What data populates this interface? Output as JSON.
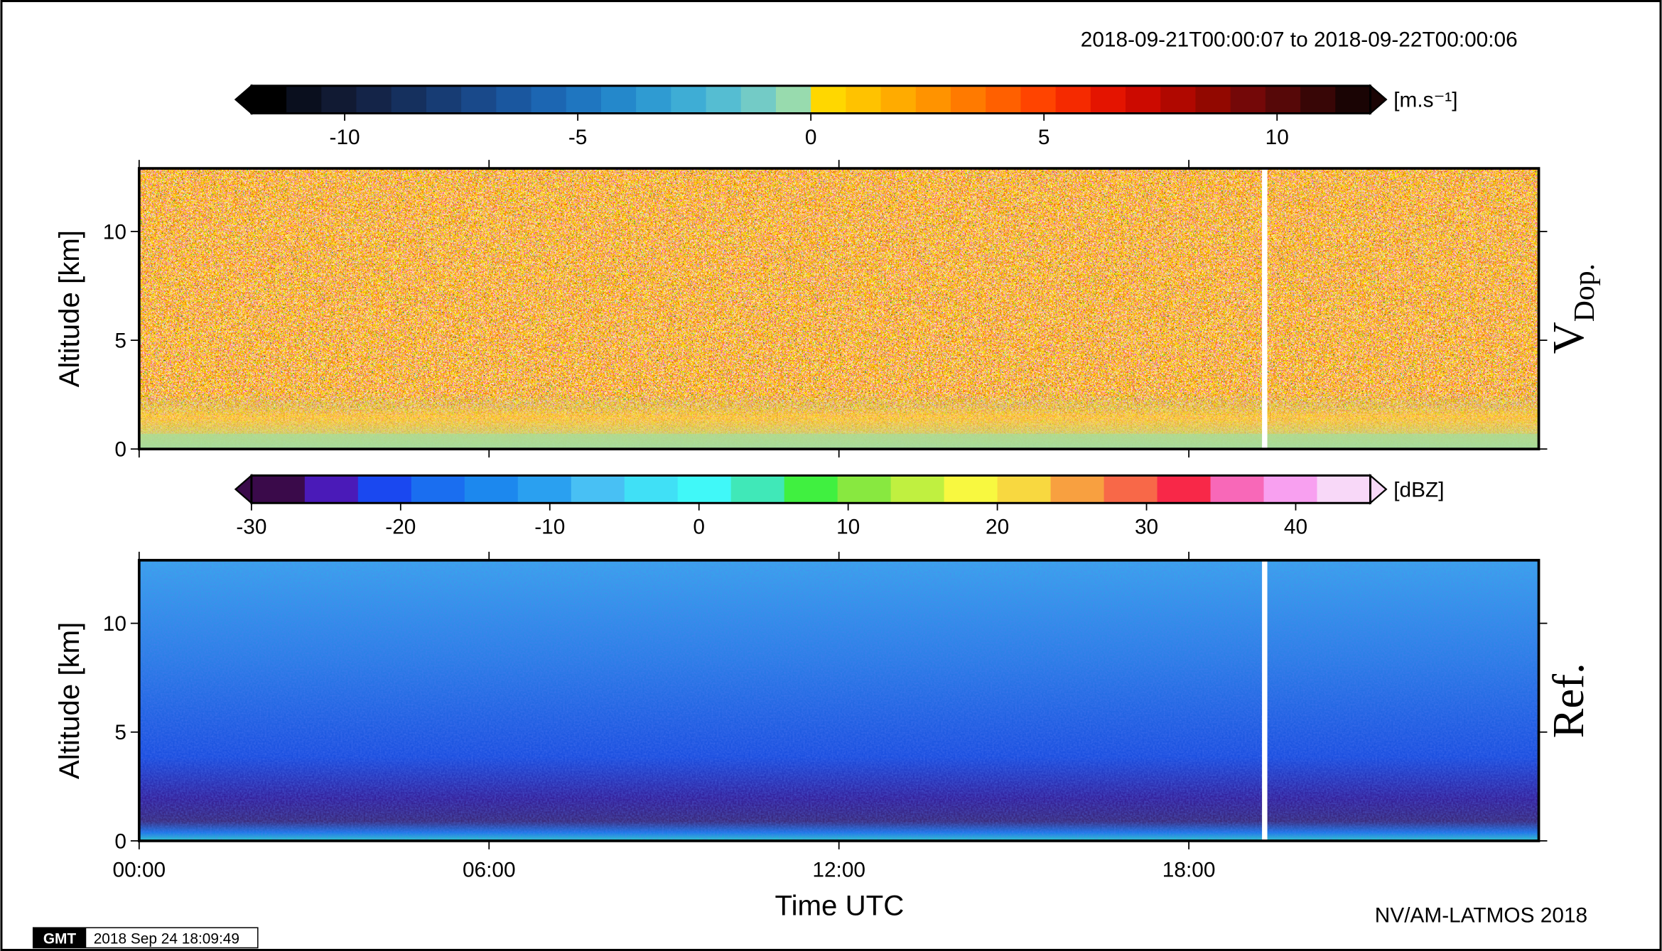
{
  "chart_data": {
    "type": "heatmap",
    "title": "2018-09-21T00:00:07 to 2018-09-22T00:00:06",
    "xlabel": "Time UTC",
    "xlim": [
      0,
      24
    ],
    "xticks": [
      {
        "value": 0,
        "label": "00:00"
      },
      {
        "value": 6,
        "label": "06:00"
      },
      {
        "value": 12,
        "label": "12:00"
      },
      {
        "value": 18,
        "label": "18:00"
      }
    ],
    "colorbars": [
      {
        "unit": "[m.s⁻¹]",
        "range": [
          -12,
          12
        ],
        "ticks": [
          -10,
          -5,
          0,
          5,
          10
        ],
        "colors": [
          "#000000",
          "#0a0f1e",
          "#111a33",
          "#142448",
          "#15305e",
          "#173c74",
          "#19498a",
          "#1a579f",
          "#1c66b2",
          "#1f76c0",
          "#2488cb",
          "#2f9bd2",
          "#3eadd5",
          "#55bdd2",
          "#73cbc6",
          "#98dbae",
          "#ffd700",
          "#ffc200",
          "#ffab00",
          "#ff9300",
          "#ff7a00",
          "#ff6000",
          "#ff4400",
          "#f52a00",
          "#e41400",
          "#cc0a00",
          "#b00800",
          "#920800",
          "#740808",
          "#560808",
          "#380606",
          "#1a0404"
        ]
      },
      {
        "unit": "[dBZ]",
        "range": [
          -30,
          45
        ],
        "ticks": [
          -30,
          -20,
          -10,
          0,
          10,
          20,
          30,
          40
        ],
        "colors": [
          "#3a0a4a",
          "#4a1ab8",
          "#1a48f0",
          "#1a6ef0",
          "#1c88ee",
          "#2aa0f0",
          "#48c0f4",
          "#40e0f6",
          "#40f8f8",
          "#40e8b8",
          "#40f040",
          "#88e840",
          "#c0f040",
          "#f8f840",
          "#f8d840",
          "#f8a040",
          "#f86848",
          "#f82848",
          "#f868b8",
          "#f8a0f0",
          "#f8d8f8"
        ]
      }
    ],
    "panels": [
      {
        "label": "V",
        "label_sub": "Dop.",
        "ylabel": "Altitude [km]",
        "ylim": [
          0,
          12.9
        ],
        "yticks": [
          0,
          5,
          10
        ]
      },
      {
        "label": "Ref.",
        "ylabel": "Altitude [km]",
        "ylim": [
          0,
          12.9
        ],
        "yticks": [
          0,
          5,
          10
        ]
      }
    ],
    "credit": "NV/AM-LATMOS 2018",
    "logo": "GMT",
    "timestamp": "2018 Sep 24 18:09:49"
  }
}
